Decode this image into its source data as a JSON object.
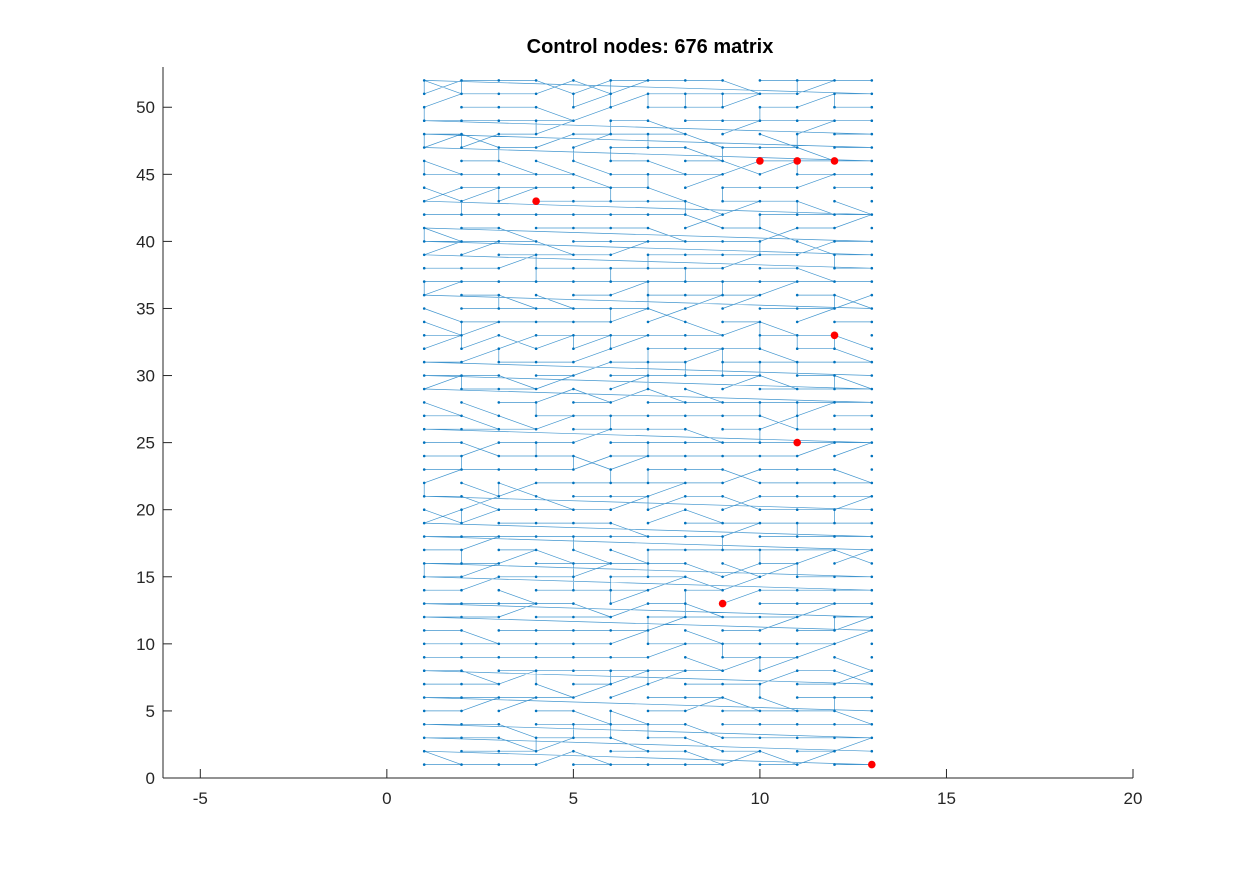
{
  "chart_data": {
    "type": "network",
    "title": "Control nodes: 676 matrix",
    "xlabel": "",
    "ylabel": "",
    "xlim": [
      -6,
      20
    ],
    "ylim": [
      0,
      53
    ],
    "x_ticks": [
      -5,
      0,
      5,
      10,
      15,
      20
    ],
    "y_ticks": [
      0,
      5,
      10,
      15,
      20,
      25,
      30,
      35,
      40,
      45,
      50
    ],
    "grid": false,
    "legend": "none",
    "nodes": {
      "columns": 13,
      "rows": 52,
      "x_range": [
        1,
        13
      ],
      "y_range": [
        1,
        52
      ],
      "count": 676
    },
    "edge_color": "#0072BD",
    "node_color": "#0072BD",
    "control_node_color": "#FF0000",
    "control_nodes": [
      {
        "x": 13,
        "y": 1
      },
      {
        "x": 9,
        "y": 13
      },
      {
        "x": 11,
        "y": 25
      },
      {
        "x": 12,
        "y": 33
      },
      {
        "x": 4,
        "y": 43
      },
      {
        "x": 10,
        "y": 46
      },
      {
        "x": 11,
        "y": 46
      },
      {
        "x": 12,
        "y": 46
      }
    ]
  }
}
